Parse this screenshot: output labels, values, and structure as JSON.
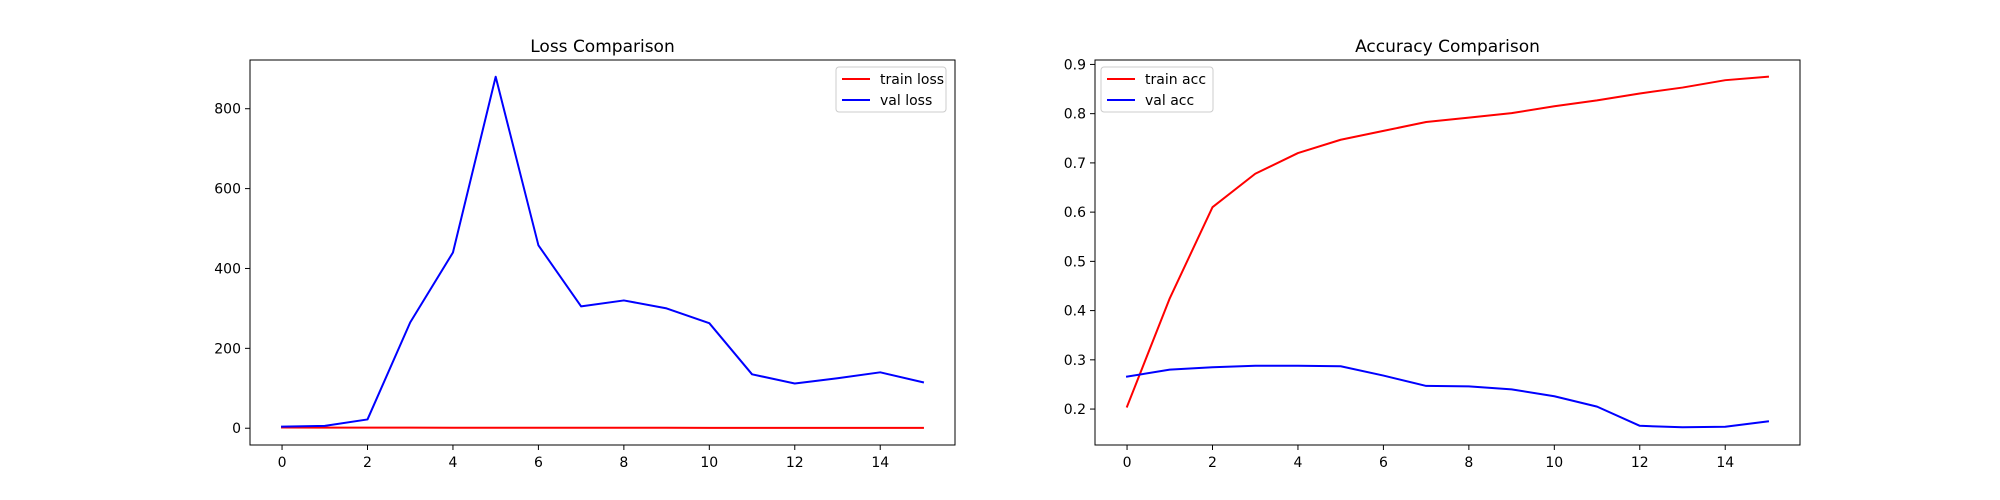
{
  "chart_data": [
    {
      "type": "line",
      "title": "Loss Comparison",
      "xlabel": "",
      "ylabel": "",
      "x": [
        0,
        1,
        2,
        3,
        4,
        5,
        6,
        7,
        8,
        9,
        10,
        11,
        12,
        13,
        14,
        15
      ],
      "xlim": [
        -0.75,
        15.75
      ],
      "ylim": [
        -42,
        922
      ],
      "xticks": [
        "0",
        "2",
        "4",
        "6",
        "8",
        "10",
        "12",
        "14"
      ],
      "yticks": [
        "0",
        "200",
        "400",
        "600",
        "800"
      ],
      "legend_position": "top-right",
      "grid": false,
      "series": [
        {
          "name": "train loss",
          "color": "#ff0000",
          "values": [
            1.8,
            1.6,
            1.5,
            1.4,
            1.3,
            1.3,
            1.2,
            1.2,
            1.1,
            1.1,
            1.0,
            1.0,
            0.9,
            0.9,
            0.9,
            0.8
          ]
        },
        {
          "name": "val loss",
          "color": "#0000ff",
          "values": [
            4,
            6,
            22,
            265,
            440,
            880,
            458,
            305,
            320,
            300,
            263,
            135,
            112,
            125,
            140,
            115
          ]
        }
      ]
    },
    {
      "type": "line",
      "title": "Accuracy Comparison",
      "xlabel": "",
      "ylabel": "",
      "x": [
        0,
        1,
        2,
        3,
        4,
        5,
        6,
        7,
        8,
        9,
        10,
        11,
        12,
        13,
        14,
        15
      ],
      "xlim": [
        -0.75,
        15.75
      ],
      "ylim": [
        0.127,
        0.909
      ],
      "xticks": [
        "0",
        "2",
        "4",
        "6",
        "8",
        "10",
        "12",
        "14"
      ],
      "yticks": [
        "0.2",
        "0.3",
        "0.4",
        "0.5",
        "0.6",
        "0.7",
        "0.8",
        "0.9"
      ],
      "legend_position": "top-left",
      "grid": false,
      "series": [
        {
          "name": "train acc",
          "color": "#ff0000",
          "values": [
            0.205,
            0.425,
            0.61,
            0.678,
            0.72,
            0.747,
            0.765,
            0.783,
            0.792,
            0.801,
            0.815,
            0.827,
            0.841,
            0.853,
            0.868,
            0.875
          ]
        },
        {
          "name": "val acc",
          "color": "#0000ff",
          "values": [
            0.266,
            0.28,
            0.285,
            0.288,
            0.288,
            0.287,
            0.268,
            0.247,
            0.246,
            0.24,
            0.226,
            0.205,
            0.166,
            0.163,
            0.164,
            0.175
          ]
        }
      ]
    }
  ]
}
